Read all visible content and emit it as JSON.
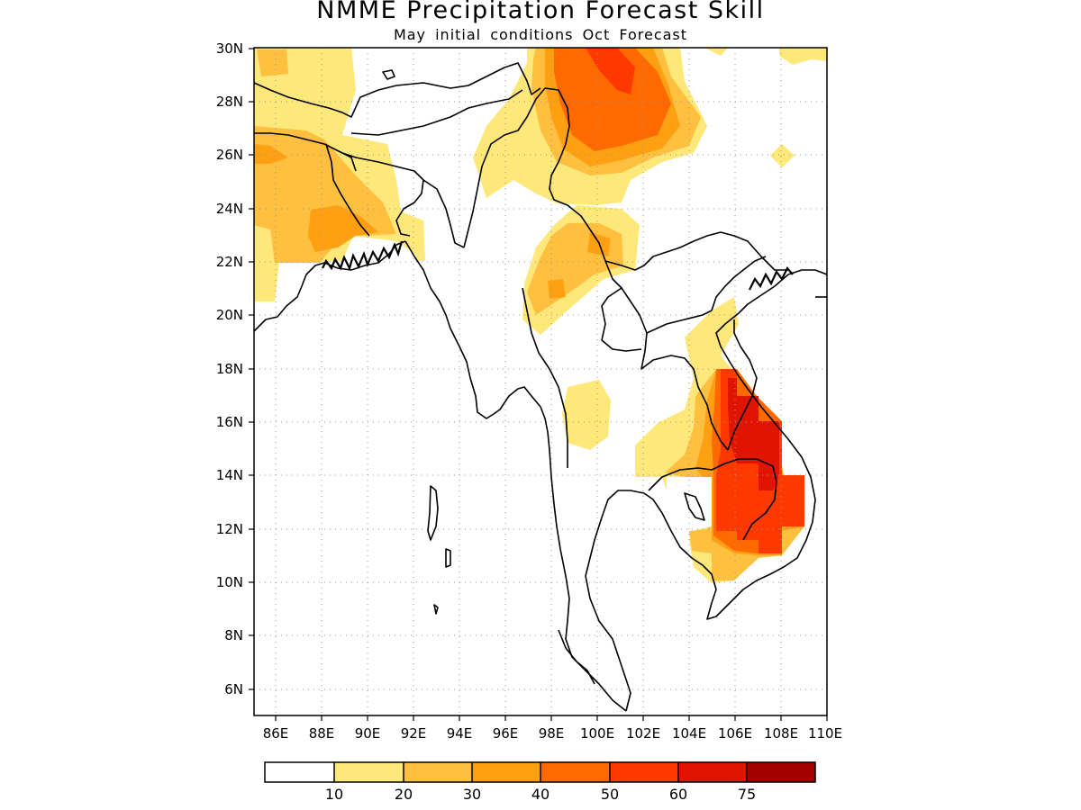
{
  "map": {
    "title": "NMME Precipitation Forecast Skill",
    "subtitle": "May initial conditions  Oct Forecast",
    "lat_labels": [
      "30N",
      "28N",
      "26N",
      "24N",
      "22N",
      "20N",
      "18N",
      "16N",
      "14N",
      "12N",
      "10N",
      "8N",
      "6N"
    ],
    "lon_labels": [
      "86E",
      "88E",
      "90E",
      "92E",
      "94E",
      "96E",
      "98E",
      "100E",
      "102E",
      "104E",
      "106E",
      "108E",
      "110E"
    ],
    "extent": {
      "lon": [
        85,
        110
      ],
      "lat": [
        5,
        30
      ]
    },
    "grid": "dotted",
    "colorbar": {
      "labels": [
        "10",
        "20",
        "30",
        "40",
        "50",
        "60",
        "75"
      ],
      "colors": [
        "#ffffff",
        "#ffe87a",
        "#ffbf3f",
        "#ffa012",
        "#ff6a00",
        "#ff3800",
        "#e01400",
        "#a50000"
      ]
    }
  }
}
